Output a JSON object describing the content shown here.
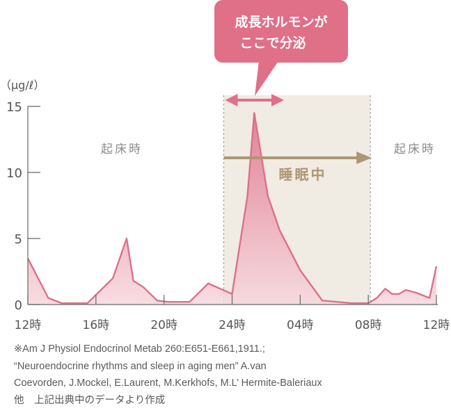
{
  "chart_data": {
    "type": "area",
    "unit_label": "（μg/ℓ）",
    "ylim": [
      0,
      15
    ],
    "yticks": [
      0,
      5,
      10,
      15
    ],
    "x_ticks": [
      "12時",
      "16時",
      "20時",
      "24時",
      "04時",
      "08時",
      "12時"
    ],
    "x_tick_hours": [
      12,
      16,
      20,
      24,
      28,
      32,
      36
    ],
    "xlim": [
      12,
      36
    ],
    "series": [
      {
        "x": [
          12,
          13.2,
          14,
          15.5,
          17,
          17.8,
          18.2,
          18.8,
          19.6,
          20.2,
          21.5,
          22.6,
          24,
          24.9,
          25.3,
          26.1,
          26.8,
          28,
          29.3,
          31,
          32,
          32.5,
          33,
          33.4,
          33.8,
          34.2,
          34.8,
          35.6,
          36
        ],
        "values": [
          3.5,
          0.5,
          0.1,
          0.1,
          2.0,
          5.0,
          1.8,
          1.3,
          0.3,
          0.2,
          0.2,
          1.6,
          0.8,
          8.2,
          14.5,
          8.2,
          5.6,
          2.6,
          0.3,
          0.1,
          0.1,
          0.5,
          1.2,
          0.8,
          0.8,
          1.1,
          0.9,
          0.5,
          2.9
        ]
      }
    ],
    "wake_label_left": "起床時",
    "wake_label_right": "起床時",
    "sleep_label": "睡眠中",
    "sleep_range": [
      24,
      32
    ],
    "callout_text_line1": "成長ホルモンが",
    "callout_text_line2": "ここで分泌",
    "callout_range": [
      24,
      26.8
    ]
  },
  "colors": {
    "curve": "#dc7189",
    "fill_top": "#e06f88",
    "fill_bottom": "#f6d7dd",
    "sleep_band": "#f0ebe3",
    "sleep_arrow": "#ad9674",
    "label_gray": "#8c8c8c",
    "axis": "#666666",
    "callout": "#e06f88"
  },
  "note": {
    "line1": "※Am J Physiol Endocrinol Metab 260:E651-E661,1911.;",
    "line2": "“Neuroendocrine rhythms and sleep in aging men” A.van",
    "line3": "Coevorden, J.Mockel, E.Laurent, M.Kerkhofs, M.L’ Hermite-Baleriaux",
    "line4": "他　上記出典中のデータより作成"
  }
}
